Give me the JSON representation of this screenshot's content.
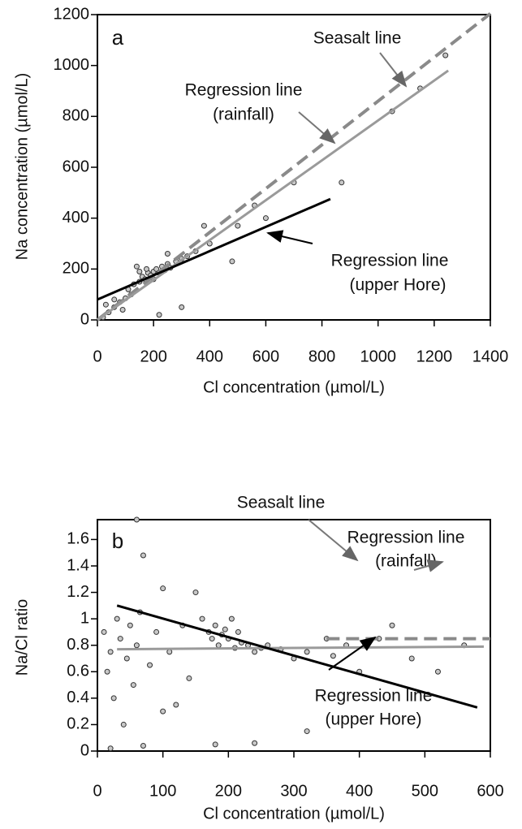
{
  "chart_data": [
    {
      "type": "scatter",
      "panel_label": "a",
      "x_label": "Cl concentration (µmol/L)",
      "y_label": "Na concentration (µmol/L)",
      "xlim": [
        0,
        1400
      ],
      "xticks": [
        0,
        200,
        400,
        600,
        800,
        1000,
        1200,
        1400
      ],
      "ylim": [
        0,
        1200
      ],
      "yticks": [
        0,
        200,
        400,
        600,
        800,
        1000,
        1200
      ],
      "points": {
        "color": "#c8c8c8",
        "x": [
          20,
          40,
          60,
          80,
          100,
          110,
          130,
          150,
          160,
          170,
          180,
          190,
          200,
          210,
          220,
          230,
          240,
          250,
          260,
          280,
          300,
          320,
          150,
          175,
          200,
          120,
          90,
          60,
          30,
          220,
          300,
          350,
          400,
          480,
          500,
          560,
          600,
          700,
          870,
          1050,
          1150,
          1240,
          380,
          250,
          140
        ],
        "values": [
          10,
          30,
          50,
          70,
          85,
          120,
          140,
          150,
          170,
          160,
          185,
          175,
          190,
          200,
          185,
          210,
          195,
          220,
          205,
          230,
          240,
          250,
          190,
          200,
          160,
          100,
          40,
          80,
          60,
          20,
          50,
          270,
          300,
          230,
          370,
          450,
          400,
          540,
          540,
          820,
          910,
          1040,
          370,
          260,
          210
        ]
      },
      "lines": [
        {
          "x": [
            0,
            1400
          ],
          "values": [
            0,
            1204
          ],
          "color": "#8a8a8a",
          "dashed": true
        },
        {
          "x": [
            0,
            1250
          ],
          "values": [
            0,
            980
          ],
          "color": "#9a9a9a",
          "dashed": false
        },
        {
          "x": [
            0,
            830
          ],
          "values": [
            80,
            475
          ],
          "color": "#000000",
          "dashed": false
        }
      ],
      "annotations": [
        "Seasalt line",
        "Regression line",
        "(rainfall)",
        "Regression line",
        "(upper Hore)"
      ]
    },
    {
      "type": "scatter",
      "panel_label": "b",
      "x_label": "Cl concentration (µmol/L)",
      "y_label": "Na/Cl ratio",
      "xlim": [
        0,
        600
      ],
      "xticks": [
        0,
        100,
        200,
        300,
        400,
        500,
        600
      ],
      "ylim": [
        0,
        1.75
      ],
      "yticks": [
        0,
        0.2,
        0.4,
        0.6,
        0.8,
        1,
        1.2,
        1.4,
        1.6
      ],
      "points": {
        "color": "#c8c8c8",
        "x": [
          10,
          15,
          20,
          25,
          30,
          35,
          40,
          45,
          50,
          55,
          60,
          65,
          70,
          60,
          80,
          90,
          100,
          110,
          120,
          130,
          140,
          150,
          160,
          170,
          175,
          180,
          185,
          190,
          195,
          200,
          205,
          210,
          215,
          220,
          230,
          240,
          250,
          260,
          280,
          300,
          320,
          350,
          380,
          400,
          430,
          480,
          520,
          560,
          320,
          240,
          70,
          180,
          20,
          100,
          360,
          450
        ],
        "values": [
          0.9,
          0.6,
          0.75,
          0.4,
          1.0,
          0.85,
          0.2,
          0.7,
          0.95,
          0.5,
          0.8,
          1.05,
          1.48,
          1.75,
          0.65,
          0.9,
          1.23,
          0.75,
          0.35,
          0.95,
          0.55,
          1.2,
          1.0,
          0.9,
          0.85,
          0.95,
          0.8,
          0.88,
          0.92,
          0.85,
          1.0,
          0.78,
          0.9,
          0.82,
          0.8,
          0.75,
          0.78,
          0.8,
          0.77,
          0.7,
          0.75,
          0.85,
          0.8,
          0.6,
          0.85,
          0.7,
          0.6,
          0.8,
          0.15,
          0.06,
          0.04,
          0.05,
          0.02,
          0.3,
          0.72,
          0.95
        ]
      },
      "lines": [
        {
          "x": [
            350,
            600
          ],
          "values": [
            0.85,
            0.85
          ],
          "color": "#8a8a8a",
          "dashed": true
        },
        {
          "x": [
            30,
            590
          ],
          "values": [
            0.77,
            0.79
          ],
          "color": "#9a9a9a",
          "dashed": false
        },
        {
          "x": [
            30,
            580
          ],
          "values": [
            1.1,
            0.33
          ],
          "color": "#000000",
          "dashed": false
        }
      ],
      "annotations": [
        "Seasalt line",
        "Regression line",
        "(rainfall)",
        "Regression line",
        "(upper Hore)"
      ]
    }
  ]
}
